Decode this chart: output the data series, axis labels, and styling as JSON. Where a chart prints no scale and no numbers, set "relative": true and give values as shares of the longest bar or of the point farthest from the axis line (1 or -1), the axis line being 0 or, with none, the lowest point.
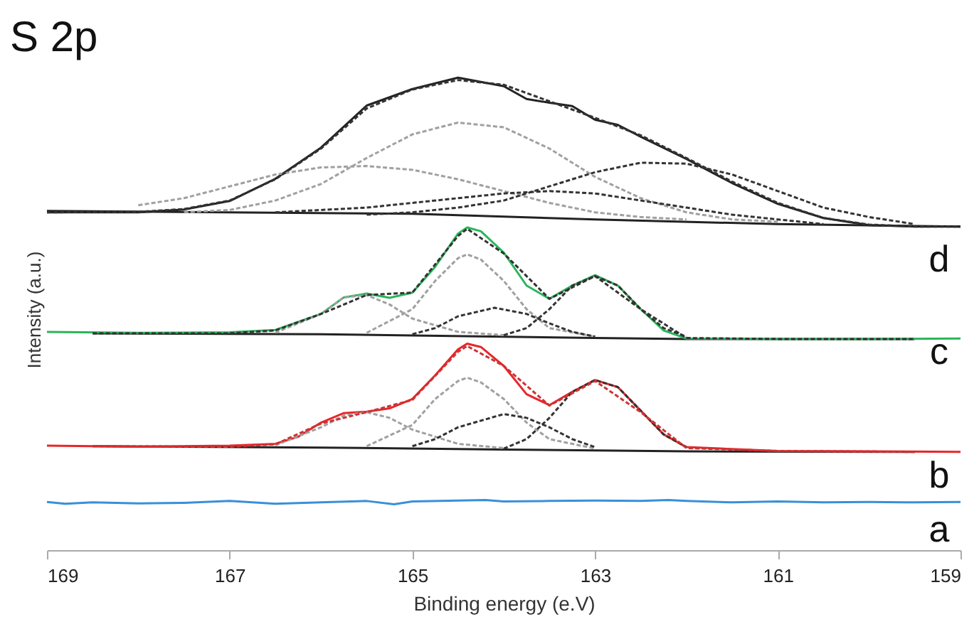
{
  "chart_data": {
    "type": "line",
    "title": "S 2p",
    "xlabel": "Binding energy (e.V)",
    "ylabel": "Intensity (a.u.)",
    "relative": true,
    "xlim": [
      169,
      159
    ],
    "xticks": [
      169,
      167,
      165,
      163,
      161,
      159
    ],
    "grid": false,
    "legend": false,
    "marker": "none",
    "annotations": [
      "d",
      "c",
      "b",
      "a"
    ],
    "series": [
      {
        "color": "#a0a0a0",
        "line_style": "dashed",
        "x": [
          168,
          167.5,
          167,
          166.5,
          166,
          165.5,
          165,
          164.5,
          164,
          163.5,
          163,
          162.5,
          162
        ],
        "values": [
          0.73,
          0.745,
          0.77,
          0.795,
          0.81,
          0.813,
          0.805,
          0.785,
          0.76,
          0.735,
          0.715,
          0.705,
          0.7
        ]
      },
      {
        "color": "#a0a0a0",
        "line_style": "dashed",
        "x": [
          167.5,
          167,
          166.5,
          166,
          165.5,
          165,
          164.5,
          164,
          163.5,
          163,
          162.5,
          162,
          161.5,
          161
        ],
        "values": [
          0.715,
          0.72,
          0.74,
          0.775,
          0.83,
          0.88,
          0.905,
          0.895,
          0.85,
          0.79,
          0.745,
          0.715,
          0.7,
          0.695
        ]
      },
      {
        "color": "#333333",
        "line_style": "dashed",
        "x": [
          165.5,
          165,
          164.5,
          164,
          163.5,
          163,
          162.5,
          162,
          161.5,
          161,
          160.5,
          160,
          159.5
        ],
        "values": [
          0.71,
          0.715,
          0.725,
          0.74,
          0.77,
          0.8,
          0.82,
          0.818,
          0.795,
          0.76,
          0.725,
          0.705,
          0.69
        ]
      },
      {
        "color": "#333333",
        "line_style": "dashed",
        "x": [
          166.5,
          166,
          165.5,
          165,
          164.5,
          164,
          163.5,
          163,
          162.5,
          162,
          161.5,
          161,
          160.5
        ],
        "values": [
          0.715,
          0.72,
          0.725,
          0.735,
          0.745,
          0.755,
          0.76,
          0.755,
          0.74,
          0.725,
          0.71,
          0.7,
          0.69
        ]
      },
      {
        "color": "#222222",
        "line_style": "solid",
        "x": [
          169,
          165,
          163,
          161,
          159
        ],
        "values": [
          0.718,
          0.712,
          0.7,
          0.69,
          0.685
        ]
      },
      {
        "color": "#333333",
        "line_style": "dashed",
        "x": [
          169,
          168,
          167.5,
          167,
          166.5,
          166,
          165.5,
          165,
          164.5,
          164,
          163.5,
          163,
          162.5,
          162,
          161.5,
          161,
          160.5,
          160,
          159.5,
          159
        ],
        "values": [
          0.715,
          0.716,
          0.722,
          0.74,
          0.785,
          0.85,
          0.935,
          0.975,
          0.995,
          0.985,
          0.95,
          0.915,
          0.878,
          0.83,
          0.78,
          0.735,
          0.703,
          0.689,
          0.685,
          0.685
        ]
      },
      {
        "color": "#222222",
        "line_style": "solid",
        "x": [
          169,
          168,
          167.5,
          167,
          166.5,
          166,
          165.5,
          165,
          164.5,
          164,
          163.75,
          163.5,
          163.25,
          163,
          162.75,
          162.5,
          162,
          161.5,
          161,
          160.5,
          160,
          159.5,
          159
        ],
        "values": [
          0.715,
          0.715,
          0.721,
          0.739,
          0.786,
          0.852,
          0.941,
          0.976,
          1.0,
          0.982,
          0.955,
          0.947,
          0.94,
          0.911,
          0.9,
          0.875,
          0.828,
          0.777,
          0.733,
          0.703,
          0.688,
          0.685,
          0.685
        ]
      },
      {
        "color": "#a0a0a0",
        "line_style": "dashed",
        "x": [
          166.5,
          166,
          165.75,
          165.5,
          165.25,
          165,
          164.5,
          164
        ],
        "values": [
          0.46,
          0.5,
          0.535,
          0.54,
          0.52,
          0.49,
          0.462,
          0.455
        ]
      },
      {
        "color": "#a0a0a0",
        "line_style": "dashed",
        "x": [
          165.5,
          165,
          164.75,
          164.5,
          164.4,
          164.25,
          164,
          163.75,
          163.5,
          163
        ],
        "values": [
          0.46,
          0.51,
          0.57,
          0.618,
          0.626,
          0.615,
          0.57,
          0.51,
          0.47,
          0.452
        ]
      },
      {
        "color": "#333333",
        "line_style": "dashed",
        "x": [
          165,
          164.75,
          164.5,
          164.1,
          163.75,
          163.5,
          163.25,
          163
        ],
        "values": [
          0.457,
          0.47,
          0.495,
          0.513,
          0.5,
          0.48,
          0.462,
          0.452
        ]
      },
      {
        "color": "#333333",
        "line_style": "dashed",
        "x": [
          164,
          163.75,
          163.5,
          163.25,
          163,
          162.75,
          162.5,
          162.25,
          162
        ],
        "values": [
          0.455,
          0.47,
          0.51,
          0.56,
          0.58,
          0.56,
          0.51,
          0.47,
          0.452
        ]
      },
      {
        "color": "#222222",
        "line_style": "solid",
        "x": [
          168.5,
          166,
          163,
          162,
          159.5
        ],
        "values": [
          0.459,
          0.457,
          0.449,
          0.447,
          0.447
        ]
      },
      {
        "color": "#2ab55a",
        "line_style": "solid",
        "x": [
          169,
          168,
          167,
          166.5,
          166,
          165.75,
          165.5,
          165.25,
          165,
          164.75,
          164.5,
          164.4,
          164.25,
          164,
          163.75,
          163.5,
          163.25,
          163,
          162.75,
          162.5,
          162.25,
          162,
          161,
          160,
          159
        ],
        "values": [
          0.462,
          0.46,
          0.461,
          0.466,
          0.5,
          0.535,
          0.543,
          0.534,
          0.545,
          0.6,
          0.67,
          0.683,
          0.675,
          0.63,
          0.56,
          0.532,
          0.56,
          0.582,
          0.56,
          0.51,
          0.465,
          0.448,
          0.447,
          0.447,
          0.448
        ]
      },
      {
        "color": "#333333",
        "line_style": "dashed",
        "x": [
          168.5,
          167,
          166.5,
          166,
          165.5,
          165,
          164.5,
          164.4,
          164,
          163.5,
          163,
          162.5,
          162,
          161,
          159.5
        ],
        "values": [
          0.459,
          0.459,
          0.465,
          0.5,
          0.54,
          0.545,
          0.665,
          0.68,
          0.628,
          0.532,
          0.58,
          0.51,
          0.449,
          0.447,
          0.447
        ]
      },
      {
        "color": "#a0a0a0",
        "line_style": "dashed",
        "x": [
          166.5,
          166,
          165.75,
          165.5,
          165.25,
          165,
          164.5,
          164
        ],
        "values": [
          0.222,
          0.26,
          0.285,
          0.292,
          0.28,
          0.255,
          0.225,
          0.216
        ]
      },
      {
        "color": "#a0a0a0",
        "line_style": "dashed",
        "x": [
          165.5,
          165,
          164.75,
          164.5,
          164.4,
          164.25,
          164,
          163.75,
          163.5,
          163
        ],
        "values": [
          0.22,
          0.265,
          0.32,
          0.358,
          0.365,
          0.355,
          0.32,
          0.27,
          0.235,
          0.215
        ]
      },
      {
        "color": "#333333",
        "line_style": "dashed",
        "x": [
          165,
          164.75,
          164.5,
          164,
          163.75,
          163.5,
          163.25,
          163
        ],
        "values": [
          0.22,
          0.235,
          0.26,
          0.288,
          0.28,
          0.26,
          0.235,
          0.218
        ]
      },
      {
        "color": "#333333",
        "line_style": "dashed",
        "x": [
          164,
          163.75,
          163.5,
          163.25,
          163,
          162.75,
          162.5,
          162.25,
          162
        ],
        "values": [
          0.215,
          0.235,
          0.28,
          0.335,
          0.36,
          0.345,
          0.295,
          0.245,
          0.218
        ]
      },
      {
        "color": "#222222",
        "line_style": "solid",
        "x": [
          168.5,
          166,
          164,
          162,
          159.5
        ],
        "values": [
          0.22,
          0.217,
          0.213,
          0.209,
          0.208
        ]
      },
      {
        "color": "#e8262a",
        "line_style": "solid",
        "x": [
          169,
          168,
          167,
          166.5,
          166.25,
          166,
          165.75,
          165.5,
          165.25,
          165,
          164.75,
          164.5,
          164.4,
          164.25,
          164,
          163.75,
          163.5,
          163.25,
          163,
          162.75,
          162.5,
          162.25,
          162,
          161,
          160,
          159
        ],
        "values": [
          0.221,
          0.219,
          0.221,
          0.225,
          0.24,
          0.27,
          0.29,
          0.293,
          0.3,
          0.32,
          0.37,
          0.425,
          0.437,
          0.43,
          0.39,
          0.33,
          0.307,
          0.335,
          0.36,
          0.345,
          0.295,
          0.245,
          0.218,
          0.21,
          0.209,
          0.208
        ]
      },
      {
        "color": "#cc3333",
        "line_style": "dashed",
        "x": [
          168.5,
          167,
          166.5,
          166,
          165.5,
          165,
          164.5,
          164.4,
          164,
          163.5,
          163,
          162.5,
          162,
          161,
          159.5
        ],
        "values": [
          0.22,
          0.219,
          0.224,
          0.268,
          0.292,
          0.318,
          0.42,
          0.432,
          0.39,
          0.306,
          0.358,
          0.292,
          0.216,
          0.21,
          0.208
        ]
      },
      {
        "color": "#3a8fd8",
        "line_style": "solid",
        "x": [
          169,
          168.8,
          168.5,
          168,
          167.5,
          167,
          166.5,
          166,
          165.5,
          165.2,
          165,
          164.5,
          164.2,
          164,
          163.5,
          163,
          162.5,
          162.2,
          162,
          161.5,
          161,
          160.5,
          160,
          159.5,
          159
        ],
        "values": [
          0.102,
          0.098,
          0.101,
          0.099,
          0.1,
          0.104,
          0.098,
          0.101,
          0.104,
          0.097,
          0.103,
          0.105,
          0.106,
          0.103,
          0.104,
          0.105,
          0.104,
          0.106,
          0.104,
          0.101,
          0.103,
          0.101,
          0.102,
          0.101,
          0.102
        ]
      }
    ]
  }
}
